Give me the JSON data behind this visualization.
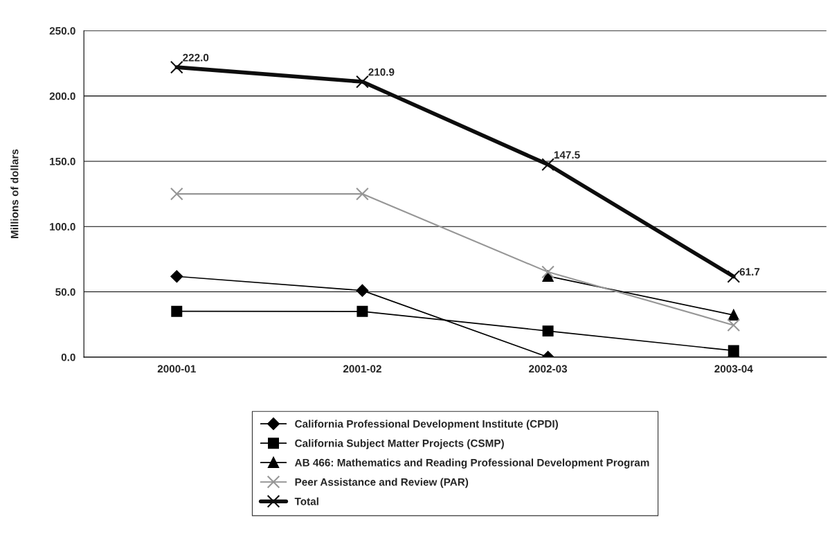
{
  "chart_data": {
    "type": "line",
    "ylabel": "Millions of dollars",
    "categories": [
      "2000-01",
      "2001-02",
      "2002-03",
      "2003-04"
    ],
    "series": [
      {
        "name": "California Professional Development Institute (CPDI)",
        "color": "#000000",
        "marker": "diamond",
        "values": [
          61.8,
          51.0,
          0.0,
          0.0
        ]
      },
      {
        "name": "California Subject Matter Projects (CSMP)",
        "color": "#000000",
        "marker": "square",
        "values": [
          35.1,
          35.0,
          20.0,
          5.0
        ]
      },
      {
        "name": "AB 466: Mathematics and Reading Professional Development Program",
        "color": "#000000",
        "marker": "triangle",
        "values": [
          null,
          null,
          62.0,
          32.2
        ]
      },
      {
        "name": "Peer Assistance and Review (PAR)",
        "color": "#969696",
        "marker": "cross",
        "values": [
          125.0,
          125.0,
          65.2,
          24.5
        ]
      },
      {
        "name": "Total",
        "color": "#0d0d0d",
        "marker": "cross",
        "values": [
          222.0,
          210.9,
          147.5,
          61.7
        ],
        "value_labels": [
          "222.0",
          "210.9",
          "147.5",
          "61.7"
        ]
      }
    ],
    "ylim": [
      0,
      250
    ],
    "yticks": [
      {
        "value": 0,
        "label": "0.0"
      },
      {
        "value": 50,
        "label": "50.0"
      },
      {
        "value": 100,
        "label": "100.0"
      },
      {
        "value": 150,
        "label": "150.0"
      },
      {
        "value": 200,
        "label": "200.0"
      },
      {
        "value": 250,
        "label": "250.0"
      }
    ],
    "grid": "y",
    "legend": "bottom"
  }
}
